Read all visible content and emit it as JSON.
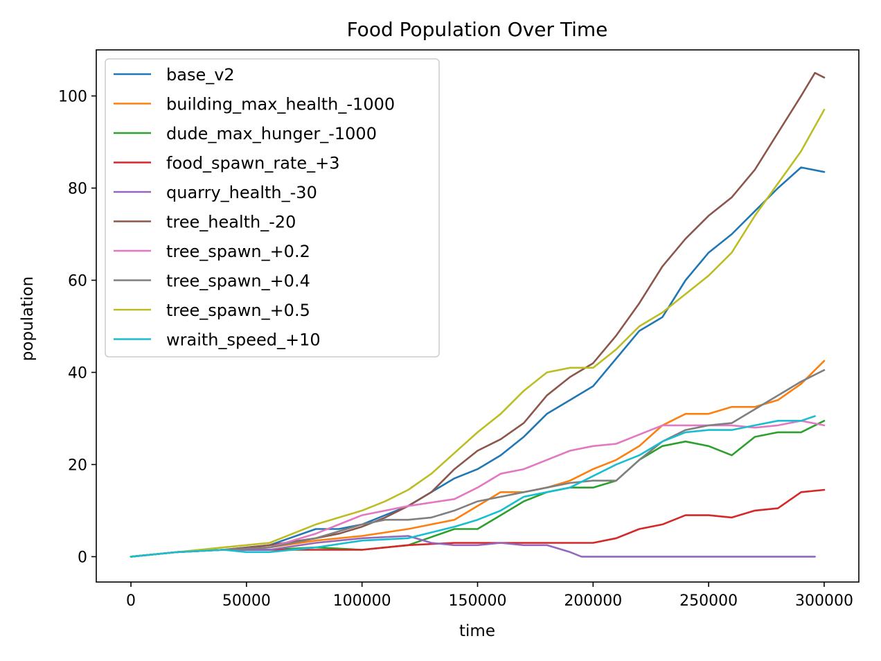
{
  "chart_data": {
    "type": "line",
    "title": "Food Population Over Time",
    "xlabel": "time",
    "ylabel": "population",
    "xlim": [
      -15000,
      315000
    ],
    "ylim": [
      -5.5,
      110
    ],
    "xticks": [
      0,
      50000,
      100000,
      150000,
      200000,
      250000,
      300000
    ],
    "yticks": [
      0,
      20,
      40,
      60,
      80,
      100
    ],
    "grid": false,
    "legend_position": "upper-left",
    "series": [
      {
        "name": "base_v2",
        "color": "#1f77b4",
        "x": [
          0,
          20000,
          40000,
          60000,
          80000,
          90000,
          100000,
          110000,
          120000,
          130000,
          140000,
          150000,
          160000,
          170000,
          180000,
          190000,
          200000,
          210000,
          220000,
          230000,
          240000,
          250000,
          260000,
          270000,
          280000,
          290000,
          300000
        ],
        "y": [
          0,
          1,
          1.5,
          2.5,
          6,
          6,
          7,
          9,
          11,
          14,
          17,
          19,
          22,
          26,
          31,
          34,
          37,
          43,
          49,
          52,
          60,
          66,
          70,
          75,
          80,
          84.5,
          83.5
        ]
      },
      {
        "name": "building_max_health_-1000",
        "color": "#ff7f0e",
        "x": [
          0,
          20000,
          40000,
          60000,
          80000,
          100000,
          120000,
          140000,
          150000,
          160000,
          170000,
          180000,
          190000,
          200000,
          210000,
          220000,
          230000,
          240000,
          250000,
          260000,
          270000,
          280000,
          290000,
          300000
        ],
        "y": [
          0,
          1,
          1.5,
          2,
          3.5,
          4.5,
          6,
          8,
          11,
          14,
          14,
          15,
          16.5,
          19,
          21,
          24,
          28.5,
          31,
          31,
          32.5,
          32.5,
          34,
          37.5,
          42.5
        ]
      },
      {
        "name": "dude_max_hunger_-1000",
        "color": "#2ca02c",
        "x": [
          0,
          20000,
          40000,
          60000,
          80000,
          100000,
          120000,
          140000,
          150000,
          160000,
          170000,
          180000,
          190000,
          200000,
          210000,
          220000,
          230000,
          240000,
          250000,
          260000,
          270000,
          280000,
          290000,
          300000
        ],
        "y": [
          0,
          1,
          1.5,
          1.5,
          2,
          1.5,
          2.5,
          6,
          6,
          9,
          12,
          14,
          15,
          15,
          16.5,
          21,
          24,
          25,
          24,
          22,
          26,
          27,
          27,
          29.5
        ]
      },
      {
        "name": "food_spawn_rate_+3",
        "color": "#d62728",
        "x": [
          0,
          20000,
          40000,
          60000,
          80000,
          100000,
          120000,
          140000,
          160000,
          180000,
          190000,
          200000,
          210000,
          220000,
          230000,
          240000,
          250000,
          260000,
          270000,
          280000,
          290000,
          300000
        ],
        "y": [
          0,
          1,
          1.5,
          1.5,
          1.5,
          1.5,
          2.5,
          3,
          3,
          3,
          3,
          3,
          4,
          6,
          7,
          9,
          9,
          8.5,
          10,
          10.5,
          14,
          14.5
        ]
      },
      {
        "name": "quarry_health_-30",
        "color": "#9467bd",
        "x": [
          0,
          20000,
          40000,
          60000,
          80000,
          100000,
          120000,
          130000,
          140000,
          150000,
          160000,
          170000,
          180000,
          190000,
          195000,
          200000,
          250000,
          296000
        ],
        "y": [
          0,
          1,
          1.5,
          1.5,
          3,
          4,
          4.5,
          3,
          2.5,
          2.5,
          3,
          2.5,
          2.5,
          1,
          0,
          0,
          0,
          0
        ]
      },
      {
        "name": "tree_health_-20",
        "color": "#8c564b",
        "x": [
          0,
          20000,
          40000,
          60000,
          80000,
          90000,
          100000,
          110000,
          120000,
          130000,
          140000,
          150000,
          160000,
          170000,
          180000,
          190000,
          200000,
          210000,
          220000,
          230000,
          240000,
          250000,
          260000,
          270000,
          280000,
          290000,
          296000,
          300000
        ],
        "y": [
          0,
          1,
          1.5,
          2.5,
          4,
          5,
          6.5,
          8.5,
          11,
          14,
          19,
          23,
          25.5,
          29,
          35,
          39,
          42,
          48,
          55,
          63,
          69,
          74,
          78,
          84,
          92,
          100,
          105,
          104
        ]
      },
      {
        "name": "tree_spawn_+0.2",
        "color": "#e377c2",
        "x": [
          0,
          20000,
          40000,
          60000,
          80000,
          100000,
          120000,
          140000,
          150000,
          160000,
          170000,
          180000,
          190000,
          200000,
          210000,
          220000,
          230000,
          240000,
          250000,
          260000,
          270000,
          280000,
          290000,
          300000
        ],
        "y": [
          0,
          1,
          1.5,
          2,
          5,
          9,
          11,
          12.5,
          15,
          18,
          19,
          21,
          23,
          24,
          24.5,
          26.5,
          28.5,
          28.5,
          28.5,
          28.5,
          28,
          28.5,
          29.5,
          28.5
        ]
      },
      {
        "name": "tree_spawn_+0.4",
        "color": "#7f7f7f",
        "x": [
          0,
          20000,
          40000,
          60000,
          80000,
          100000,
          110000,
          120000,
          130000,
          140000,
          150000,
          160000,
          170000,
          180000,
          190000,
          200000,
          210000,
          220000,
          230000,
          240000,
          250000,
          260000,
          270000,
          280000,
          290000,
          300000
        ],
        "y": [
          0,
          1,
          1.5,
          2,
          4,
          7,
          8,
          8,
          8.5,
          10,
          12,
          13,
          14,
          15,
          16,
          16.5,
          16.5,
          21,
          25,
          27.5,
          28.5,
          29,
          32,
          35,
          38,
          40.5
        ]
      },
      {
        "name": "tree_spawn_+0.5",
        "color": "#bcbd22",
        "x": [
          0,
          20000,
          40000,
          60000,
          80000,
          90000,
          100000,
          110000,
          120000,
          130000,
          140000,
          150000,
          160000,
          170000,
          180000,
          190000,
          200000,
          210000,
          220000,
          230000,
          240000,
          250000,
          260000,
          270000,
          280000,
          290000,
          300000
        ],
        "y": [
          0,
          1,
          2,
          3,
          7,
          8.5,
          10,
          12,
          14.5,
          18,
          22.5,
          27,
          31,
          36,
          40,
          41,
          41,
          45,
          50,
          53,
          57,
          61,
          66,
          74,
          81,
          88,
          97
        ]
      },
      {
        "name": "wraith_speed_+10",
        "color": "#17becf",
        "x": [
          0,
          20000,
          40000,
          50000,
          60000,
          80000,
          100000,
          120000,
          140000,
          150000,
          160000,
          170000,
          180000,
          190000,
          200000,
          210000,
          220000,
          230000,
          240000,
          250000,
          260000,
          270000,
          280000,
          290000,
          296000
        ],
        "y": [
          0,
          1,
          1.5,
          1,
          1,
          2,
          3.5,
          4,
          6.5,
          8,
          10,
          13,
          14,
          15,
          17.5,
          20,
          22,
          25,
          27,
          27.5,
          27.5,
          28.5,
          29.5,
          29.5,
          30.5
        ]
      }
    ]
  }
}
